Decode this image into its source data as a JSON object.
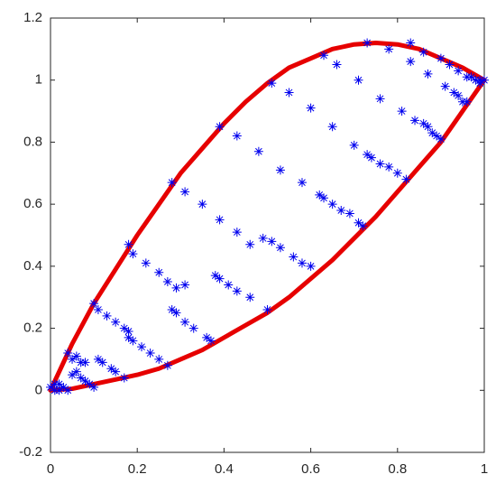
{
  "chart_data": {
    "type": "scatter",
    "xlim": [
      0,
      1
    ],
    "xticks": [
      0,
      0.2,
      0.4,
      0.6,
      0.8,
      1
    ],
    "ylim": [
      -0.2,
      1.2
    ],
    "yticks": [
      -0.2,
      0,
      0.2,
      0.4,
      0.6,
      0.8,
      1,
      1.2
    ],
    "series": [
      {
        "type": "line",
        "color": "#e60000",
        "x": [
          0,
          0.05,
          0.1,
          0.15,
          0.2,
          0.25,
          0.3,
          0.35,
          0.4,
          0.45,
          0.5,
          0.55,
          0.6,
          0.65,
          0.7,
          0.75,
          0.8,
          0.85,
          0.9,
          0.95,
          1
        ],
        "values": [
          0,
          0.15,
          0.28,
          0.39,
          0.5,
          0.6,
          0.7,
          0.78,
          0.86,
          0.93,
          0.99,
          1.04,
          1.07,
          1.1,
          1.115,
          1.12,
          1.115,
          1.1,
          1.07,
          1.04,
          1.0
        ]
      },
      {
        "type": "line",
        "color": "#e60000",
        "x": [
          0,
          0.05,
          0.1,
          0.15,
          0.2,
          0.25,
          0.3,
          0.35,
          0.4,
          0.45,
          0.5,
          0.55,
          0.6,
          0.65,
          0.7,
          0.75,
          0.8,
          0.85,
          0.9,
          0.95,
          1
        ],
        "values": [
          0,
          0.005,
          0.02,
          0.035,
          0.05,
          0.07,
          0.1,
          0.13,
          0.17,
          0.21,
          0.25,
          0.3,
          0.36,
          0.42,
          0.49,
          0.56,
          0.64,
          0.72,
          0.8,
          0.9,
          1.0
        ]
      },
      {
        "type": "scatter",
        "color": "#0000ee",
        "x": [
          0,
          0.01,
          0.02,
          0.03,
          0.01,
          0.02,
          0.04,
          0.04,
          0.05,
          0.06,
          0.07,
          0.08,
          0.06,
          0.07,
          0.08,
          0.09,
          0.1,
          0.05,
          0.1,
          0.11,
          0.13,
          0.15,
          0.17,
          0.18,
          0.18,
          0.19,
          0.21,
          0.23,
          0.25,
          0.27,
          0.11,
          0.12,
          0.14,
          0.15,
          0.17,
          0.18,
          0.19,
          0.22,
          0.25,
          0.27,
          0.28,
          0.29,
          0.31,
          0.33,
          0.36,
          0.37,
          0.29,
          0.31,
          0.28,
          0.31,
          0.35,
          0.39,
          0.43,
          0.46,
          0.49,
          0.51,
          0.53,
          0.56,
          0.58,
          0.6,
          0.38,
          0.39,
          0.41,
          0.43,
          0.46,
          0.5,
          0.39,
          0.43,
          0.48,
          0.53,
          0.58,
          0.62,
          0.63,
          0.65,
          0.67,
          0.69,
          0.71,
          0.72,
          0.51,
          0.55,
          0.6,
          0.65,
          0.7,
          0.73,
          0.74,
          0.76,
          0.78,
          0.8,
          0.82,
          0.63,
          0.66,
          0.71,
          0.76,
          0.81,
          0.84,
          0.86,
          0.87,
          0.88,
          0.89,
          0.9,
          0.73,
          0.78,
          0.83,
          0.87,
          0.91,
          0.93,
          0.94,
          0.95,
          0.96,
          0.83,
          0.86,
          0.9,
          0.92,
          0.94,
          0.96,
          0.97,
          0.98,
          0.99,
          1,
          0.99
        ],
        "values": [
          0.01,
          0.02,
          0,
          0.01,
          0,
          0.02,
          0,
          0.12,
          0.1,
          0.11,
          0.09,
          0.09,
          0.06,
          0.04,
          0.03,
          0.02,
          0.01,
          0.05,
          0.28,
          0.26,
          0.24,
          0.22,
          0.2,
          0.19,
          0.17,
          0.16,
          0.14,
          0.12,
          0.1,
          0.08,
          0.1,
          0.09,
          0.07,
          0.06,
          0.04,
          0.47,
          0.44,
          0.41,
          0.38,
          0.35,
          0.26,
          0.25,
          0.22,
          0.2,
          0.17,
          0.16,
          0.33,
          0.34,
          0.67,
          0.64,
          0.6,
          0.55,
          0.51,
          0.47,
          0.49,
          0.48,
          0.46,
          0.43,
          0.41,
          0.4,
          0.37,
          0.36,
          0.34,
          0.32,
          0.3,
          0.26,
          0.85,
          0.82,
          0.77,
          0.71,
          0.67,
          0.63,
          0.62,
          0.6,
          0.58,
          0.57,
          0.54,
          0.53,
          0.99,
          0.96,
          0.91,
          0.85,
          0.79,
          0.76,
          0.75,
          0.73,
          0.72,
          0.7,
          0.68,
          1.08,
          1.05,
          1.0,
          0.94,
          0.9,
          0.87,
          0.86,
          0.85,
          0.83,
          0.82,
          0.81,
          1.12,
          1.1,
          1.06,
          1.02,
          0.98,
          0.96,
          0.95,
          0.93,
          0.93,
          1.12,
          1.09,
          1.07,
          1.05,
          1.03,
          1.01,
          1.01,
          1.0,
          1.0,
          1,
          0.99
        ]
      }
    ]
  }
}
